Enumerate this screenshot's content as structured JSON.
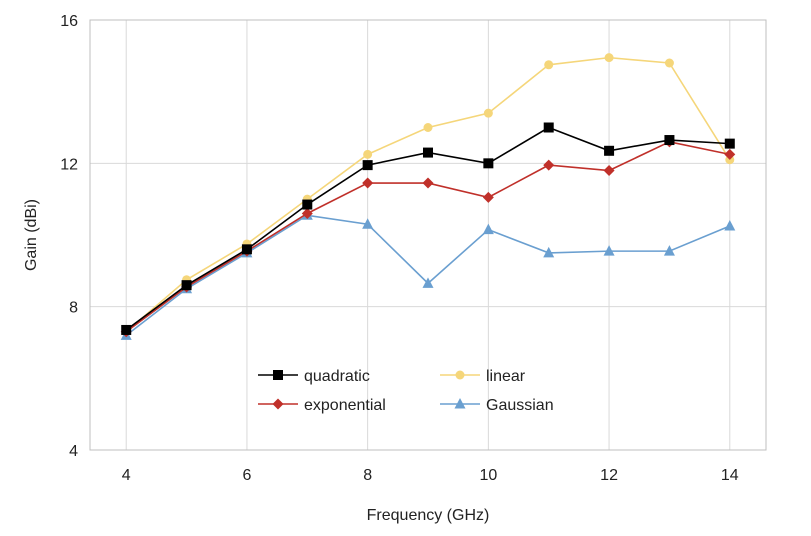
{
  "chart_data": {
    "type": "line",
    "xlabel": "Frequency (GHz)",
    "ylabel": "Gain (dBi)",
    "xlim": [
      3.4,
      14.6
    ],
    "ylim": [
      4,
      16
    ],
    "x_ticks": [
      4,
      6,
      8,
      10,
      12,
      14
    ],
    "y_ticks": [
      4,
      8,
      12,
      16
    ],
    "x": [
      4,
      5,
      6,
      7,
      8,
      9,
      10,
      11,
      12,
      13,
      14
    ],
    "grid": "vertical and horizontal major gridlines",
    "legend_placement": "bottom-center, inside plot",
    "series": [
      {
        "name": "quadratic",
        "color": "#000000",
        "marker": "square",
        "values": [
          7.35,
          8.6,
          9.6,
          10.85,
          11.95,
          12.3,
          12.0,
          13.0,
          12.35,
          12.65,
          12.55
        ]
      },
      {
        "name": "linear",
        "color": "#f5d67a",
        "marker": "circle",
        "values": [
          7.3,
          8.75,
          9.75,
          11.0,
          12.25,
          13.0,
          13.4,
          14.75,
          14.95,
          14.8,
          12.1
        ]
      },
      {
        "name": "exponential",
        "color": "#c0302a",
        "marker": "diamond",
        "values": [
          7.3,
          8.55,
          9.55,
          10.6,
          11.45,
          11.45,
          11.05,
          11.95,
          11.8,
          12.6,
          12.25
        ]
      },
      {
        "name": "Gaussian",
        "color": "#6a9fd0",
        "marker": "triangle",
        "values": [
          7.2,
          8.5,
          9.5,
          10.55,
          10.3,
          8.65,
          10.15,
          9.5,
          9.55,
          9.55,
          10.25
        ]
      }
    ]
  }
}
